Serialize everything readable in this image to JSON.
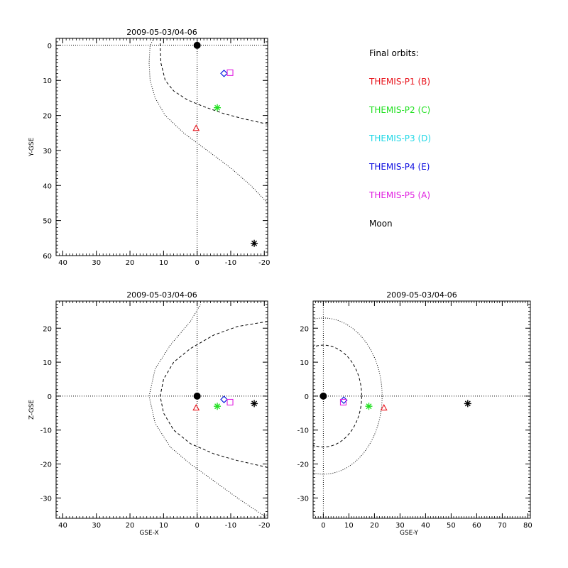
{
  "legend": {
    "title": "Final orbits:",
    "items": [
      {
        "label": "THEMIS-P1 (B)",
        "color": "#e8141c",
        "marker": "triangle"
      },
      {
        "label": "THEMIS-P2 (C)",
        "color": "#22e022",
        "marker": "asterisk"
      },
      {
        "label": "THEMIS-P3 (D)",
        "color": "#22d8e6",
        "marker": "diamond"
      },
      {
        "label": "THEMIS-P4 (E)",
        "color": "#1010e0",
        "marker": "diamond"
      },
      {
        "label": "THEMIS-P5 (A)",
        "color": "#e020e0",
        "marker": "square"
      },
      {
        "label": "Moon",
        "color": "#000000",
        "marker": "asterisk"
      }
    ]
  },
  "chart_data": [
    {
      "type": "scatter",
      "title": "2009-05-03/04-06",
      "xlabel": "",
      "ylabel": "Y-GSE",
      "xlim": [
        42,
        -21
      ],
      "ylim": [
        60,
        -2
      ],
      "xticks": [
        40,
        30,
        20,
        10,
        0,
        -10,
        -20
      ],
      "yticks": [
        0,
        10,
        20,
        30,
        40,
        50,
        60
      ],
      "earth": {
        "x": 0,
        "y": 0
      },
      "reference_lines": {
        "x": 0,
        "y": 0
      },
      "points": [
        {
          "name": "THEMIS-P1 (B)",
          "x": 0.3,
          "y": 23.7
        },
        {
          "name": "THEMIS-P2 (C)",
          "x": -6.0,
          "y": 17.8
        },
        {
          "name": "THEMIS-P3 (D)",
          "x": -8.0,
          "y": 8.0
        },
        {
          "name": "THEMIS-P4 (E)",
          "x": -8.0,
          "y": 8.0
        },
        {
          "name": "THEMIS-P5 (A)",
          "x": -9.8,
          "y": 7.8
        },
        {
          "name": "Moon",
          "x": -17.0,
          "y": 56.5
        }
      ],
      "curves": [
        {
          "name": "bow shock",
          "style": "dotted",
          "points": [
            [
              12.9,
              -2
            ],
            [
              14.0,
              0
            ],
            [
              14.3,
              5
            ],
            [
              14.0,
              10
            ],
            [
              12.5,
              15
            ],
            [
              9.5,
              20
            ],
            [
              4.0,
              25
            ],
            [
              -3.0,
              30
            ],
            [
              -10.0,
              35
            ],
            [
              -16.0,
              40
            ],
            [
              -21.0,
              45
            ]
          ]
        },
        {
          "name": "magnetopause",
          "style": "dashed",
          "points": [
            [
              10.9,
              -2
            ],
            [
              11.0,
              0
            ],
            [
              10.8,
              5
            ],
            [
              9.5,
              10
            ],
            [
              7.0,
              13
            ],
            [
              3.0,
              15.5
            ],
            [
              -2.0,
              17.5
            ],
            [
              -8.0,
              19.5
            ],
            [
              -14.0,
              21
            ],
            [
              -21.0,
              22.5
            ]
          ]
        }
      ]
    },
    {
      "type": "scatter",
      "title": "2009-05-03/04-06",
      "xlabel": "GSE-X",
      "ylabel": "Z-GSE",
      "xlim": [
        42,
        -21
      ],
      "ylim": [
        -36,
        28
      ],
      "xticks": [
        40,
        30,
        20,
        10,
        0,
        -10,
        -20
      ],
      "yticks": [
        20,
        10,
        0,
        -10,
        -20,
        -30
      ],
      "earth": {
        "x": 0,
        "y": 0
      },
      "reference_lines": {
        "x": 0,
        "y": 0
      },
      "points": [
        {
          "name": "THEMIS-P1 (B)",
          "x": 0.3,
          "y": -3.5
        },
        {
          "name": "THEMIS-P2 (C)",
          "x": -6.0,
          "y": -3.0
        },
        {
          "name": "THEMIS-P3 (D)",
          "x": -8.0,
          "y": -1.0
        },
        {
          "name": "THEMIS-P4 (E)",
          "x": -8.0,
          "y": -1.0
        },
        {
          "name": "THEMIS-P5 (A)",
          "x": -9.8,
          "y": -1.8
        },
        {
          "name": "Moon",
          "x": -17.0,
          "y": -2.2
        }
      ],
      "curves": [
        {
          "name": "bow shock",
          "style": "dotted",
          "points": [
            [
              -21.0,
              -36.0
            ],
            [
              -12.0,
              -30.0
            ],
            [
              -5.0,
              -25.0
            ],
            [
              2.0,
              -20.0
            ],
            [
              8.0,
              -15.0
            ],
            [
              12.5,
              -8.0
            ],
            [
              14.3,
              0.0
            ],
            [
              12.5,
              8.0
            ],
            [
              8.0,
              15.0
            ],
            [
              2.0,
              22.0
            ],
            [
              -1.0,
              27.0
            ]
          ]
        },
        {
          "name": "magnetopause",
          "style": "dashed",
          "points": [
            [
              -21.0,
              -21.0
            ],
            [
              -12.0,
              -19.0
            ],
            [
              -5.0,
              -17.0
            ],
            [
              2.0,
              -14.0
            ],
            [
              7.0,
              -10.0
            ],
            [
              10.0,
              -5.0
            ],
            [
              11.0,
              0.0
            ],
            [
              10.0,
              5.0
            ],
            [
              7.0,
              10.0
            ],
            [
              2.0,
              14.0
            ],
            [
              -5.0,
              18.0
            ],
            [
              -12.0,
              20.5
            ],
            [
              -21.0,
              22.0
            ]
          ]
        }
      ]
    },
    {
      "type": "scatter",
      "title": "2009-05-03/04-06",
      "xlabel": "GSE-Y",
      "ylabel": "",
      "xlim": [
        -4,
        81
      ],
      "ylim": [
        -36,
        28
      ],
      "xticks": [
        0,
        10,
        20,
        30,
        40,
        50,
        60,
        70,
        80
      ],
      "yticks": [
        20,
        10,
        0,
        -10,
        -20,
        -30
      ],
      "earth": {
        "x": 0,
        "y": 0
      },
      "reference_lines": {
        "x": 0,
        "y": 0
      },
      "points": [
        {
          "name": "THEMIS-P1 (B)",
          "x": 23.7,
          "y": -3.5
        },
        {
          "name": "THEMIS-P2 (C)",
          "x": 17.8,
          "y": -3.0
        },
        {
          "name": "THEMIS-P3 (D)",
          "x": 8.0,
          "y": -1.2
        },
        {
          "name": "THEMIS-P4 (E)",
          "x": 8.0,
          "y": -1.2
        },
        {
          "name": "THEMIS-P5 (A)",
          "x": 7.8,
          "y": -1.8
        },
        {
          "name": "Moon",
          "x": 56.5,
          "y": -2.2
        }
      ],
      "curves": [
        {
          "name": "bow shock",
          "style": "dotted",
          "circle": {
            "r": 23.0
          }
        },
        {
          "name": "magnetopause",
          "style": "dashed",
          "circle": {
            "r": 15.0
          }
        }
      ]
    }
  ]
}
